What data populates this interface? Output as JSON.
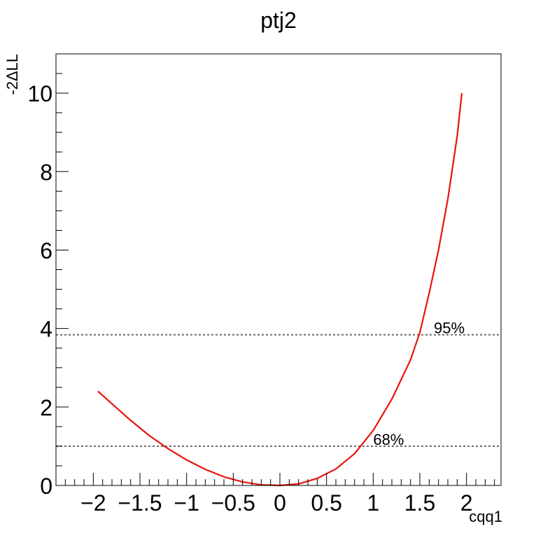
{
  "chart_data": {
    "type": "line",
    "title": "ptj2",
    "xlabel": "cqq1",
    "ylabel": "-2ΔLL",
    "xlim": [
      -2.4,
      2.37
    ],
    "ylim": [
      0,
      11
    ],
    "x_ticks": [
      {
        "value": -2,
        "label": "−2"
      },
      {
        "value": -1.5,
        "label": "−1.5"
      },
      {
        "value": -1,
        "label": "−1"
      },
      {
        "value": -0.5,
        "label": "−0.5"
      },
      {
        "value": 0,
        "label": "0"
      },
      {
        "value": 0.5,
        "label": "0.5"
      },
      {
        "value": 1,
        "label": "1"
      },
      {
        "value": 1.5,
        "label": "1.5"
      },
      {
        "value": 2,
        "label": "2"
      }
    ],
    "y_ticks": [
      {
        "value": 0,
        "label": "0"
      },
      {
        "value": 2,
        "label": "2"
      },
      {
        "value": 4,
        "label": "4"
      },
      {
        "value": 6,
        "label": "6"
      },
      {
        "value": 8,
        "label": "8"
      },
      {
        "value": 10,
        "label": "10"
      }
    ],
    "series": [
      {
        "color": "#e8140c",
        "x": [
          -1.95,
          -1.8,
          -1.6,
          -1.4,
          -1.2,
          -1.0,
          -0.8,
          -0.6,
          -0.4,
          -0.2,
          0.0,
          0.2,
          0.4,
          0.6,
          0.8,
          1.0,
          1.2,
          1.4,
          1.5,
          1.6,
          1.7,
          1.8,
          1.9,
          1.95
        ],
        "y": [
          2.4,
          2.08,
          1.66,
          1.27,
          0.94,
          0.65,
          0.41,
          0.22,
          0.09,
          0.015,
          0.0,
          0.04,
          0.18,
          0.42,
          0.81,
          1.4,
          2.2,
          3.2,
          3.9,
          4.9,
          6.0,
          7.3,
          8.9,
          10.0
        ]
      }
    ],
    "threshold_lines": [
      {
        "y": 1.0,
        "label": "68%",
        "label_x": 1.0
      },
      {
        "y": 3.84,
        "label": "95%",
        "label_x": 1.65
      }
    ],
    "grid": false,
    "legend": "none"
  }
}
